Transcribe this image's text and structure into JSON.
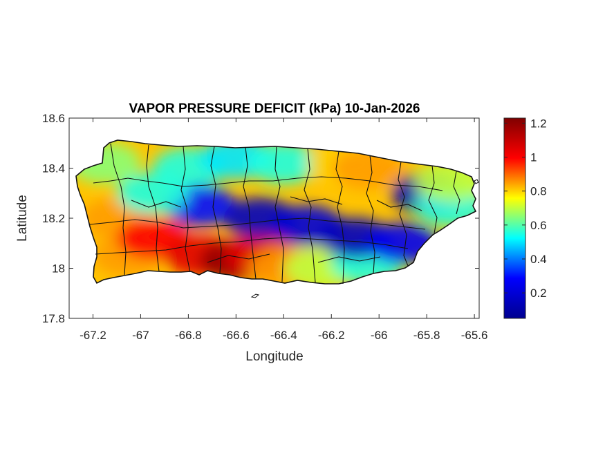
{
  "title": "VAPOR PRESSURE DEFICIT (kPa) 10-Jan-2026",
  "axes": {
    "xlabel": "Longitude",
    "ylabel": "Latitude",
    "xlim": [
      -67.3,
      -65.58
    ],
    "ylim": [
      17.8,
      18.6
    ],
    "x_ticks": [
      "-67.2",
      "-67",
      "-66.8",
      "-66.6",
      "-66.4",
      "-66.2",
      "-66",
      "-65.8",
      "-65.6"
    ],
    "y_ticks": [
      "18.6",
      "18.4",
      "18.2",
      "18",
      "17.8"
    ]
  },
  "colorbar": {
    "colormap": "jet",
    "range": [
      0.05,
      1.23
    ],
    "ticks": [
      "1.2",
      "1",
      "0.8",
      "0.6",
      "0.4",
      "0.2"
    ],
    "colors": [
      "#00008f",
      "#0000ff",
      "#00ffff",
      "#ffff00",
      "#ff0000",
      "#800000"
    ]
  },
  "chart_data": {
    "type": "heatmap",
    "title": "VAPOR PRESSURE DEFICIT (kPa) 10-Jan-2026",
    "xlabel": "Longitude",
    "ylabel": "Latitude",
    "xlim": [
      -67.3,
      -65.58
    ],
    "ylim": [
      17.8,
      18.6
    ],
    "value_range": [
      0.05,
      1.23
    ],
    "regions": [
      {
        "lon": -67.15,
        "lat": 18.42,
        "vpd": 0.65
      },
      {
        "lon": -67.1,
        "lat": 18.2,
        "vpd": 0.85
      },
      {
        "lon": -67.05,
        "lat": 18.05,
        "vpd": 0.85
      },
      {
        "lon": -66.95,
        "lat": 18.12,
        "vpd": 1.0
      },
      {
        "lon": -66.75,
        "lat": 18.05,
        "vpd": 1.05
      },
      {
        "lon": -66.6,
        "lat": 18.03,
        "vpd": 1.2
      },
      {
        "lon": -66.5,
        "lat": 18.05,
        "vpd": 1.05
      },
      {
        "lon": -66.4,
        "lat": 18.0,
        "vpd": 0.85
      },
      {
        "lon": -66.25,
        "lat": 18.0,
        "vpd": 0.7
      },
      {
        "lon": -66.05,
        "lat": 18.02,
        "vpd": 0.55
      },
      {
        "lon": -66.8,
        "lat": 18.4,
        "vpd": 0.55
      },
      {
        "lon": -66.6,
        "lat": 18.44,
        "vpd": 0.5
      },
      {
        "lon": -66.4,
        "lat": 18.42,
        "vpd": 0.55
      },
      {
        "lon": -66.15,
        "lat": 18.42,
        "vpd": 0.8
      },
      {
        "lon": -66.05,
        "lat": 18.4,
        "vpd": 0.85
      },
      {
        "lon": -66.75,
        "lat": 18.25,
        "vpd": 0.3
      },
      {
        "lon": -66.5,
        "lat": 18.2,
        "vpd": 0.15
      },
      {
        "lon": -66.3,
        "lat": 18.17,
        "vpd": 0.2
      },
      {
        "lon": -66.1,
        "lat": 18.12,
        "vpd": 0.15
      },
      {
        "lon": -65.9,
        "lat": 18.1,
        "vpd": 0.25
      },
      {
        "lon": -65.8,
        "lat": 18.3,
        "vpd": 0.12
      },
      {
        "lon": -65.7,
        "lat": 18.25,
        "vpd": 0.55
      },
      {
        "lon": -65.7,
        "lat": 18.35,
        "vpd": 0.7
      },
      {
        "lon": -66.95,
        "lat": 18.3,
        "vpd": 0.55
      }
    ]
  }
}
